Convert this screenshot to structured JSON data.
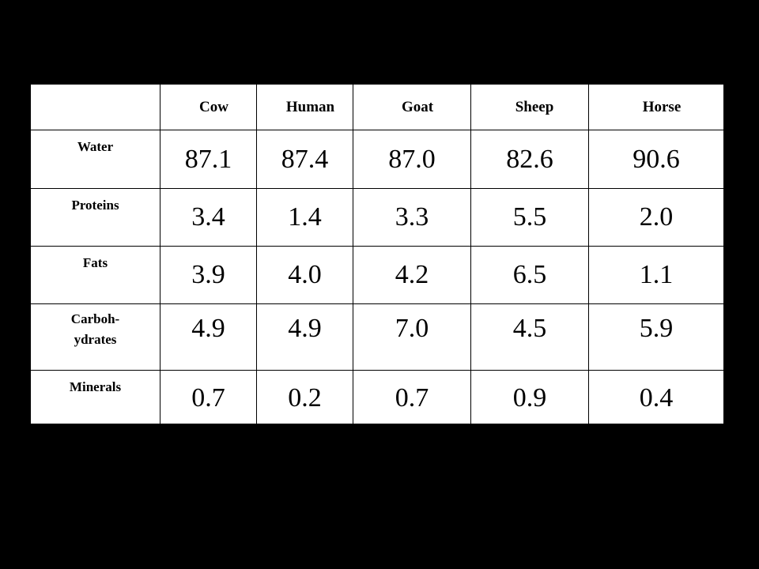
{
  "table": {
    "columns": [
      "Cow",
      "Human",
      "Goat",
      "Sheep",
      "Horse"
    ],
    "rows": [
      {
        "label": [
          "Water"
        ],
        "values": [
          "87.1",
          "87.4",
          "87.0",
          "82.6",
          "90.6"
        ]
      },
      {
        "label": [
          "Proteins"
        ],
        "values": [
          "3.4",
          "1.4",
          "3.3",
          "5.5",
          "2.0"
        ]
      },
      {
        "label": [
          "Fats"
        ],
        "values": [
          "3.9",
          "4.0",
          "4.2",
          "6.5",
          "1.1"
        ]
      },
      {
        "label": [
          "Carboh-",
          "ydrates"
        ],
        "values": [
          "4.9",
          "4.9",
          "7.0",
          "4.5",
          "5.9"
        ]
      },
      {
        "label": [
          "Minerals"
        ],
        "values": [
          "0.7",
          "0.2",
          "0.7",
          "0.9",
          "0.4"
        ]
      }
    ]
  },
  "colors": {
    "background": "#000000",
    "table_fill": "#ffffff",
    "text": "#000000"
  }
}
